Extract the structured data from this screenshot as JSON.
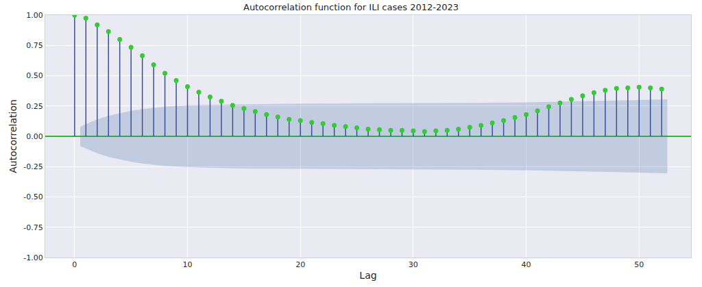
{
  "chart_data": {
    "type": "stem",
    "title": "Autocorrelation function for ILI cases 2012-2023",
    "x_label": "Lag",
    "y_label": "Autocorrelation",
    "x": [
      0,
      1,
      2,
      3,
      4,
      5,
      6,
      7,
      8,
      9,
      10,
      11,
      12,
      13,
      14,
      15,
      16,
      17,
      18,
      19,
      20,
      21,
      22,
      23,
      24,
      25,
      26,
      27,
      28,
      29,
      30,
      31,
      32,
      33,
      34,
      35,
      36,
      37,
      38,
      39,
      40,
      41,
      42,
      43,
      44,
      45,
      46,
      47,
      48,
      49,
      50,
      51,
      52
    ],
    "values": [
      1.0,
      0.975,
      0.92,
      0.865,
      0.8,
      0.735,
      0.665,
      0.59,
      0.52,
      0.46,
      0.41,
      0.365,
      0.325,
      0.29,
      0.255,
      0.23,
      0.205,
      0.18,
      0.16,
      0.14,
      0.13,
      0.115,
      0.105,
      0.09,
      0.08,
      0.07,
      0.06,
      0.055,
      0.05,
      0.05,
      0.045,
      0.04,
      0.045,
      0.05,
      0.06,
      0.075,
      0.09,
      0.11,
      0.13,
      0.155,
      0.18,
      0.21,
      0.245,
      0.275,
      0.305,
      0.335,
      0.36,
      0.38,
      0.395,
      0.4,
      0.405,
      0.4,
      0.39
    ],
    "confidence_band": {
      "x": [
        0.5,
        2,
        3,
        4,
        5,
        6,
        7,
        8,
        9,
        10,
        12,
        15,
        20,
        25,
        30,
        35,
        40,
        43,
        45,
        50,
        52.5
      ],
      "upper": [
        0.08,
        0.14,
        0.17,
        0.19,
        0.21,
        0.225,
        0.235,
        0.245,
        0.25,
        0.255,
        0.26,
        0.265,
        0.27,
        0.272,
        0.273,
        0.275,
        0.28,
        0.285,
        0.29,
        0.3,
        0.305
      ],
      "lower": [
        -0.08,
        -0.14,
        -0.17,
        -0.19,
        -0.21,
        -0.225,
        -0.235,
        -0.245,
        -0.25,
        -0.255,
        -0.26,
        -0.265,
        -0.27,
        -0.272,
        -0.273,
        -0.275,
        -0.28,
        -0.285,
        -0.29,
        -0.3,
        -0.305
      ]
    },
    "color": "#32cd32",
    "marker": "circle",
    "xlim": [
      -2.6,
      54.6
    ],
    "xticks": [
      0,
      10,
      20,
      30,
      40,
      50
    ],
    "ylim": [
      -1,
      1
    ],
    "yticks": [
      {
        "value": -1,
        "label": "-1.00"
      },
      {
        "value": -0.75,
        "label": "-0.75"
      },
      {
        "value": -0.5,
        "label": "-0.50"
      },
      {
        "value": -0.25,
        "label": "-0.25"
      },
      {
        "value": 0,
        "label": "0.00"
      },
      {
        "value": 0.25,
        "label": "0.25"
      },
      {
        "value": 0.5,
        "label": "0.50"
      },
      {
        "value": 0.75,
        "label": "0.75"
      },
      {
        "value": 1,
        "label": "1.00"
      }
    ],
    "grid": true
  }
}
